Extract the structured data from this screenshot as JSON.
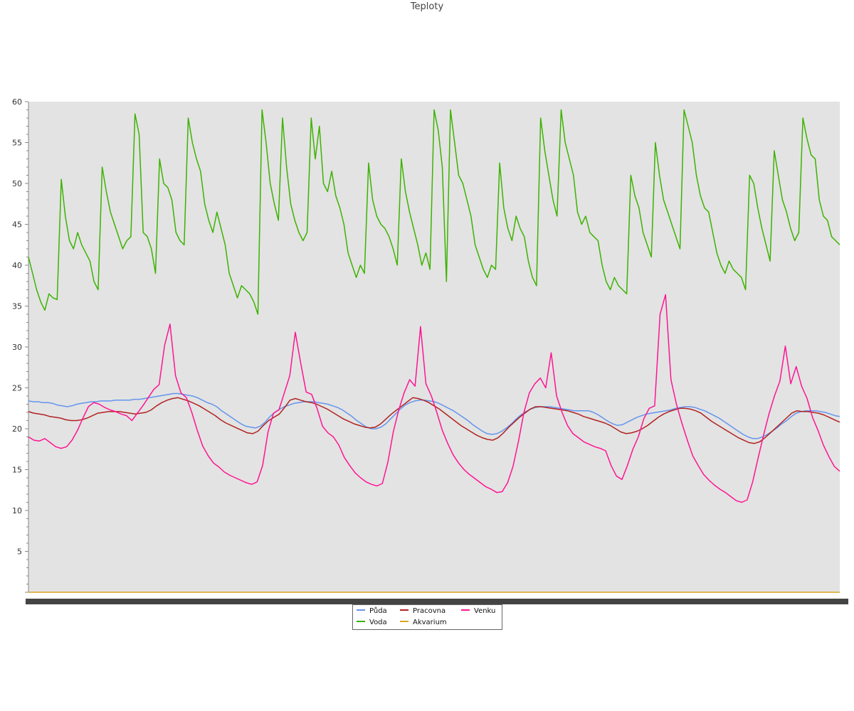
{
  "chart_data": {
    "type": "line",
    "title": "Teploty",
    "xlabel": "",
    "ylabel": "",
    "ylim": [
      0,
      60
    ],
    "yticks": [
      5,
      10,
      15,
      20,
      25,
      30,
      35,
      40,
      45,
      50,
      55,
      60
    ],
    "x_samples": 200,
    "grid": false,
    "legend_position": "bottom-center",
    "plot_background": "#e3e3e3",
    "series": [
      {
        "name": "Půda",
        "color": "#6495ed",
        "values": [
          23.4,
          23.3,
          23.3,
          23.2,
          23.2,
          23.1,
          22.9,
          22.8,
          22.7,
          22.8,
          23.0,
          23.1,
          23.2,
          23.3,
          23.3,
          23.4,
          23.4,
          23.4,
          23.5,
          23.5,
          23.5,
          23.5,
          23.6,
          23.6,
          23.7,
          23.8,
          23.9,
          24.0,
          24.1,
          24.2,
          24.3,
          24.3,
          24.2,
          24.1,
          24.0,
          23.8,
          23.5,
          23.2,
          23.0,
          22.7,
          22.2,
          21.8,
          21.4,
          21.0,
          20.6,
          20.3,
          20.2,
          20.1,
          20.3,
          20.8,
          21.5,
          22.0,
          22.4,
          22.7,
          22.9,
          23.1,
          23.2,
          23.3,
          23.3,
          23.3,
          23.2,
          23.1,
          23.0,
          22.8,
          22.6,
          22.3,
          21.9,
          21.5,
          21.0,
          20.6,
          20.2,
          20.0,
          20.0,
          20.2,
          20.6,
          21.2,
          21.8,
          22.4,
          22.9,
          23.2,
          23.4,
          23.5,
          23.5,
          23.4,
          23.3,
          23.1,
          22.8,
          22.5,
          22.2,
          21.8,
          21.4,
          21.0,
          20.5,
          20.1,
          19.7,
          19.4,
          19.3,
          19.4,
          19.7,
          20.1,
          20.6,
          21.2,
          21.7,
          22.1,
          22.4,
          22.6,
          22.7,
          22.7,
          22.7,
          22.6,
          22.5,
          22.4,
          22.3,
          22.2,
          22.2,
          22.2,
          22.2,
          22.0,
          21.7,
          21.3,
          20.9,
          20.6,
          20.4,
          20.5,
          20.8,
          21.1,
          21.4,
          21.6,
          21.8,
          21.9,
          22.0,
          22.1,
          22.2,
          22.3,
          22.5,
          22.6,
          22.7,
          22.7,
          22.6,
          22.4,
          22.2,
          21.9,
          21.6,
          21.3,
          20.9,
          20.5,
          20.1,
          19.7,
          19.3,
          19.0,
          18.8,
          18.8,
          19.0,
          19.3,
          19.7,
          20.1,
          20.6,
          21.0,
          21.5,
          21.9,
          22.1,
          22.2,
          22.2,
          22.2,
          22.1,
          22.0,
          21.8,
          21.6,
          21.5
        ]
      },
      {
        "name": "Voda",
        "color": "#3cb300",
        "values": [
          41.0,
          39.0,
          37.0,
          35.5,
          34.5,
          36.5,
          36.0,
          35.8,
          50.5,
          46.0,
          43.0,
          42.0,
          44.0,
          42.5,
          41.5,
          40.5,
          38.0,
          37.0,
          52.0,
          49.0,
          46.5,
          45.0,
          43.5,
          42.0,
          43.0,
          43.5,
          58.5,
          56.0,
          44.0,
          43.5,
          42.0,
          39.0,
          53.0,
          50.0,
          49.5,
          48.0,
          44.0,
          43.0,
          42.5,
          58.0,
          55.0,
          53.0,
          51.5,
          47.5,
          45.5,
          44.0,
          46.5,
          44.5,
          42.5,
          39.0,
          37.5,
          36.0,
          37.5,
          37.0,
          36.5,
          35.5,
          34.0,
          59.0,
          55.0,
          50.0,
          47.5,
          45.5,
          58.0,
          52.0,
          47.5,
          45.5,
          44.0,
          43.0,
          44.0,
          58.0,
          53.0,
          57.0,
          50.0,
          49.0,
          51.5,
          48.5,
          47.0,
          45.0,
          41.5,
          40.0,
          38.5,
          40.0,
          39.0,
          52.5,
          48.0,
          46.0,
          45.0,
          44.5,
          43.5,
          42.0,
          40.0,
          53.0,
          49.0,
          46.5,
          44.5,
          42.5,
          40.0,
          41.5,
          39.5,
          59.0,
          56.5,
          52.0,
          38.0,
          59.0,
          55.0,
          51.0,
          50.0,
          48.0,
          46.0,
          42.5,
          41.0,
          39.5,
          38.5,
          40.0,
          39.5,
          52.5,
          47.0,
          44.5,
          43.0,
          46.0,
          44.5,
          43.5,
          40.5,
          38.5,
          37.5,
          58.0,
          54.0,
          51.0,
          48.0,
          46.0,
          59.0,
          55.0,
          53.0,
          51.0,
          46.5,
          45.0,
          46.0,
          44.0,
          43.5,
          43.0,
          40.0,
          38.0,
          37.0,
          38.5,
          37.5,
          37.0,
          36.5,
          51.0,
          48.5,
          47.0,
          44.0,
          42.5,
          41.0,
          55.0,
          51.0,
          48.0,
          46.5,
          45.0,
          43.5,
          42.0,
          59.0,
          57.0,
          55.0,
          51.0,
          48.5,
          47.0,
          46.5,
          44.0,
          41.5,
          40.0,
          39.0,
          40.5,
          39.5,
          39.0,
          38.5,
          37.0,
          51.0,
          50.0,
          47.0,
          44.5,
          42.5,
          40.5,
          54.0,
          51.0,
          48.0,
          46.5,
          44.5,
          43.0,
          44.0,
          58.0,
          55.5,
          53.5,
          53.0,
          48.0,
          46.0,
          45.5,
          43.5,
          43.0,
          42.5
        ]
      },
      {
        "name": "Pracovna",
        "color": "#b22222",
        "values": [
          22.1,
          21.9,
          21.8,
          21.7,
          21.5,
          21.4,
          21.3,
          21.1,
          21.0,
          21.0,
          21.1,
          21.3,
          21.6,
          21.9,
          22.0,
          22.1,
          22.1,
          22.1,
          22.0,
          21.9,
          21.8,
          21.9,
          22.0,
          22.3,
          22.8,
          23.2,
          23.5,
          23.7,
          23.8,
          23.6,
          23.4,
          23.1,
          22.8,
          22.4,
          22.0,
          21.6,
          21.1,
          20.7,
          20.4,
          20.1,
          19.8,
          19.5,
          19.4,
          19.7,
          20.4,
          21.0,
          21.4,
          21.8,
          22.6,
          23.5,
          23.7,
          23.5,
          23.3,
          23.2,
          23.0,
          22.7,
          22.4,
          22.0,
          21.6,
          21.2,
          20.9,
          20.6,
          20.4,
          20.2,
          20.1,
          20.2,
          20.6,
          21.2,
          21.8,
          22.3,
          22.8,
          23.3,
          23.8,
          23.7,
          23.5,
          23.2,
          22.8,
          22.4,
          21.9,
          21.4,
          20.9,
          20.4,
          20.0,
          19.6,
          19.2,
          18.9,
          18.7,
          18.6,
          18.9,
          19.5,
          20.2,
          20.8,
          21.4,
          21.9,
          22.4,
          22.7,
          22.7,
          22.6,
          22.5,
          22.4,
          22.3,
          22.2,
          22.0,
          21.8,
          21.5,
          21.3,
          21.1,
          20.9,
          20.7,
          20.4,
          20.0,
          19.6,
          19.4,
          19.5,
          19.7,
          20.0,
          20.4,
          20.9,
          21.4,
          21.8,
          22.1,
          22.3,
          22.5,
          22.5,
          22.4,
          22.2,
          21.9,
          21.4,
          20.9,
          20.5,
          20.1,
          19.7,
          19.3,
          18.9,
          18.6,
          18.3,
          18.2,
          18.4,
          18.9,
          19.5,
          20.1,
          20.7,
          21.3,
          21.9,
          22.2,
          22.1,
          22.1,
          22.0,
          21.9,
          21.7,
          21.4,
          21.1,
          20.8
        ]
      },
      {
        "name": "Akvarium",
        "color": "#daa520",
        "values": [
          0,
          0,
          0,
          0,
          0,
          0,
          0,
          0,
          0,
          0,
          0,
          0,
          0,
          0,
          0,
          0,
          0,
          0,
          0,
          0
        ]
      },
      {
        "name": "Venku",
        "color": "#ff1493",
        "values": [
          19.0,
          18.6,
          18.5,
          18.8,
          18.3,
          17.8,
          17.6,
          17.8,
          18.6,
          19.8,
          21.3,
          22.7,
          23.2,
          23.0,
          22.6,
          22.3,
          22.1,
          21.8,
          21.6,
          21.0,
          21.9,
          22.8,
          23.8,
          24.8,
          25.4,
          30.2,
          32.8,
          26.5,
          24.4,
          23.8,
          22.0,
          19.8,
          17.9,
          16.7,
          15.8,
          15.3,
          14.7,
          14.3,
          14.0,
          13.7,
          13.4,
          13.2,
          13.5,
          15.5,
          19.6,
          21.9,
          22.3,
          24.4,
          26.5,
          31.8,
          28.0,
          24.5,
          24.2,
          22.5,
          20.3,
          19.5,
          19.0,
          18.0,
          16.5,
          15.5,
          14.6,
          14.0,
          13.5,
          13.2,
          13.0,
          13.3,
          15.9,
          19.6,
          22.3,
          24.4,
          26.0,
          25.2,
          32.5,
          25.5,
          24.0,
          22.0,
          19.8,
          18.2,
          16.8,
          15.8,
          15.0,
          14.4,
          13.9,
          13.4,
          12.9,
          12.6,
          12.2,
          12.3,
          13.4,
          15.4,
          18.5,
          22.0,
          24.4,
          25.5,
          26.2,
          25.0,
          29.3,
          24.0,
          22.0,
          20.4,
          19.4,
          18.9,
          18.4,
          18.1,
          17.8,
          17.6,
          17.3,
          15.5,
          14.2,
          13.8,
          15.5,
          17.5,
          19.0,
          21.2,
          22.5,
          22.8,
          34.0,
          36.4,
          26.0,
          23.0,
          20.7,
          18.6,
          16.7,
          15.5,
          14.4,
          13.7,
          13.1,
          12.6,
          12.2,
          11.7,
          11.2,
          11.0,
          11.3,
          13.5,
          16.4,
          19.2,
          21.8,
          24.0,
          25.8,
          30.1,
          25.5,
          27.6,
          25.2,
          23.7,
          21.4,
          19.8,
          18.0,
          16.6,
          15.4,
          14.8
        ]
      }
    ]
  }
}
